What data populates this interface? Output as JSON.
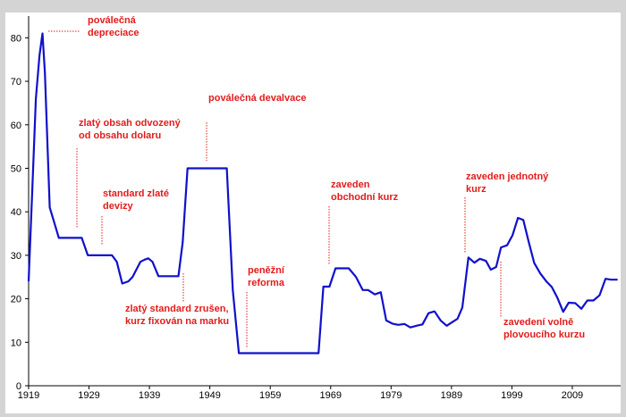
{
  "chart_data": {
    "type": "line",
    "title": "",
    "xlabel": "",
    "ylabel": "",
    "xlim": [
      1919,
      2017
    ],
    "ylim": [
      0,
      85
    ],
    "x_ticks": [
      1919,
      1929,
      1939,
      1949,
      1959,
      1969,
      1979,
      1989,
      1999,
      2009
    ],
    "y_ticks": [
      0,
      10,
      20,
      30,
      40,
      50,
      60,
      70,
      80
    ],
    "grid": false,
    "legend": "none",
    "colors": {
      "line": "#1010cc",
      "annotation": "#e31b1b",
      "axis": "#000000",
      "background": "#ffffff",
      "frame": "#d4d4d4"
    },
    "series": [
      {
        "x": [
          1919,
          1919.6,
          1920.2,
          1920.8,
          1921.3,
          1921.7,
          1922.5,
          1924,
          1926,
          1927.5,
          1927.8,
          1928.8,
          1930,
          1932,
          1932.8,
          1933.6,
          1934.5,
          1935.5,
          1936.2,
          1937.5,
          1938.2,
          1938.8,
          1939.5,
          1940.5,
          1942.5,
          1943.8,
          1944.5,
          1945.3,
          1946.5,
          1950,
          1951.8,
          1952.8,
          1953.8,
          1955,
          1960,
          1965,
          1967,
          1967.8,
          1968.8,
          1969.8,
          1972,
          1973.2,
          1974.3,
          1975.2,
          1976.3,
          1977.3,
          1978.2,
          1979.2,
          1980.2,
          1981.2,
          1982.2,
          1983.2,
          1984.2,
          1985.2,
          1986.2,
          1987.2,
          1988.2,
          1989.2,
          1990,
          1990.8,
          1991.8,
          1992.8,
          1993.7,
          1994.7,
          1995.5,
          1996.4,
          1997.2,
          1998.2,
          1999.1,
          2000,
          2000.9,
          2001.8,
          2002.7,
          2003.7,
          2004.7,
          2005.6,
          2006.5,
          2007.5,
          2008.4,
          2009.5,
          2010.5,
          2011.5,
          2012.5,
          2013.5,
          2014.5,
          2015.4,
          2016.5
        ],
        "y": [
          24,
          45,
          66,
          76,
          81,
          72,
          41,
          34,
          34,
          34,
          34,
          30,
          30,
          30,
          30,
          28.5,
          23.5,
          24,
          25,
          28.5,
          29,
          29.3,
          28.5,
          25.2,
          25.2,
          25.2,
          33,
          50,
          50,
          50,
          50,
          22,
          7.5,
          7.5,
          7.5,
          7.5,
          7.5,
          22.8,
          22.8,
          27,
          27,
          25,
          22,
          22,
          21,
          21.5,
          15,
          14.3,
          14,
          14.2,
          13.4,
          13.8,
          14.1,
          16.7,
          17.1,
          15,
          13.8,
          14.7,
          15.4,
          18,
          29.5,
          28.3,
          29.2,
          28.7,
          26.7,
          27.3,
          31.8,
          32.3,
          34.6,
          38.6,
          38.1,
          33,
          28.2,
          25.8,
          24,
          22.7,
          20.3,
          17,
          19.1,
          19,
          17.7,
          19.6,
          19.6,
          20.8,
          24.6,
          24.4,
          24.4
        ]
      }
    ],
    "annotations": [
      {
        "id": "depreciation",
        "lines": [
          "poválečná",
          "depreciace"
        ]
      },
      {
        "id": "gold-dollar",
        "lines": [
          "zlatý obsah odvozený",
          "od obsahu dolaru"
        ]
      },
      {
        "id": "gold-currency",
        "lines": [
          "standard zlaté",
          "devizy"
        ]
      },
      {
        "id": "gold-cancelled",
        "lines": [
          "zlatý standard zrušen,",
          "kurz fixován na marku"
        ]
      },
      {
        "id": "devaluation",
        "lines": [
          "poválečná devalvace"
        ]
      },
      {
        "id": "monetary-reform",
        "lines": [
          "peněžní",
          "reforma"
        ]
      },
      {
        "id": "commercial-rate",
        "lines": [
          "zaveden",
          "obchodní kurz"
        ]
      },
      {
        "id": "unified-rate",
        "lines": [
          "zaveden jednotný",
          "kurz"
        ]
      },
      {
        "id": "floating-rate",
        "lines": [
          "zavedení volně",
          "plovoucího kurzu"
        ]
      }
    ]
  }
}
